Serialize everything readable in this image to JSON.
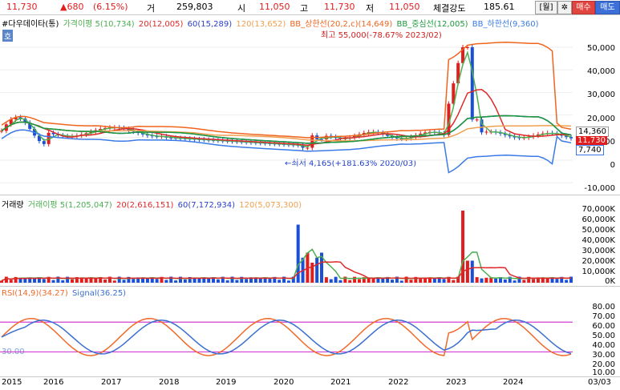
{
  "header": {
    "price": "11,730",
    "change": "▲680",
    "change_pct": "(6.15%)",
    "volume_label": "거",
    "volume": "259,803",
    "open_label": "시",
    "open": "11,050",
    "high_label": "고",
    "high": "11,730",
    "low_label": "저",
    "low": "11,050",
    "strength_label": "체결강도",
    "strength": "185.61",
    "period_button": "[월]",
    "settings_button": "✲",
    "buy_button": "매수",
    "sell_button": "매도"
  },
  "price_panel": {
    "tag": "호",
    "legend": {
      "name": "#다우데이타(통)",
      "ma5": "가격이평 5(10,734)",
      "ma20": "20(12,005)",
      "ma60": "60(15,289)",
      "ma120": "120(13,652)",
      "bb_upper": "BB_상한선(20,2,c)(14,649)",
      "bb_mid": "BB_중심선(12,005)",
      "bb_lower": "BB_하한선(9,360)"
    },
    "high_annotation": "최고 55,000(-78.67% 2023/02)",
    "low_annotation": "←최저 4,165(+181.63% 2020/03)",
    "right_tags": {
      "upper": "14,360",
      "current": "11,730",
      "lower": "7,740"
    },
    "y_ticks": [
      "50,000",
      "40,000",
      "30,000",
      "20,000",
      "10,000",
      "0",
      "-10,000"
    ]
  },
  "volume_panel": {
    "legend": {
      "name": "거래량",
      "ma5": "거래이평 5(1,205,047)",
      "ma20": "20(2,616,151)",
      "ma60": "60(7,172,934)",
      "ma120": "120(5,073,300)"
    },
    "y_ticks": [
      "70,000K",
      "60,000K",
      "50,000K",
      "40,000K",
      "30,000K",
      "20,000K",
      "10,000K",
      "0K"
    ]
  },
  "rsi_panel": {
    "legend": {
      "rsi": "RSI(14,9)(34.27)",
      "signal": "Signal(36.25)"
    },
    "left_label": "30.00",
    "y_ticks": [
      "80.00",
      "70.00",
      "60.00",
      "50.00",
      "40.00",
      "30.00",
      "20.00",
      "10.00"
    ]
  },
  "x_axis": {
    "years": [
      "2015",
      "2016",
      "2017",
      "2018",
      "2019",
      "2020",
      "2021",
      "2022",
      "2023",
      "2024"
    ],
    "last_label": "03/03"
  },
  "colors": {
    "up": "#e21d1d",
    "down": "#1a4fd6",
    "ma5": "#4caf50",
    "ma20": "#e02828",
    "ma60": "#2b3fc7",
    "ma120": "#f0a050",
    "bb_upper": "#f0641e",
    "bb_mid": "#1a9a3a",
    "bb_lower": "#3a7ae8",
    "rsi": "#f06a2a",
    "signal": "#3a6fd0",
    "guide": "#d23fd2"
  }
}
